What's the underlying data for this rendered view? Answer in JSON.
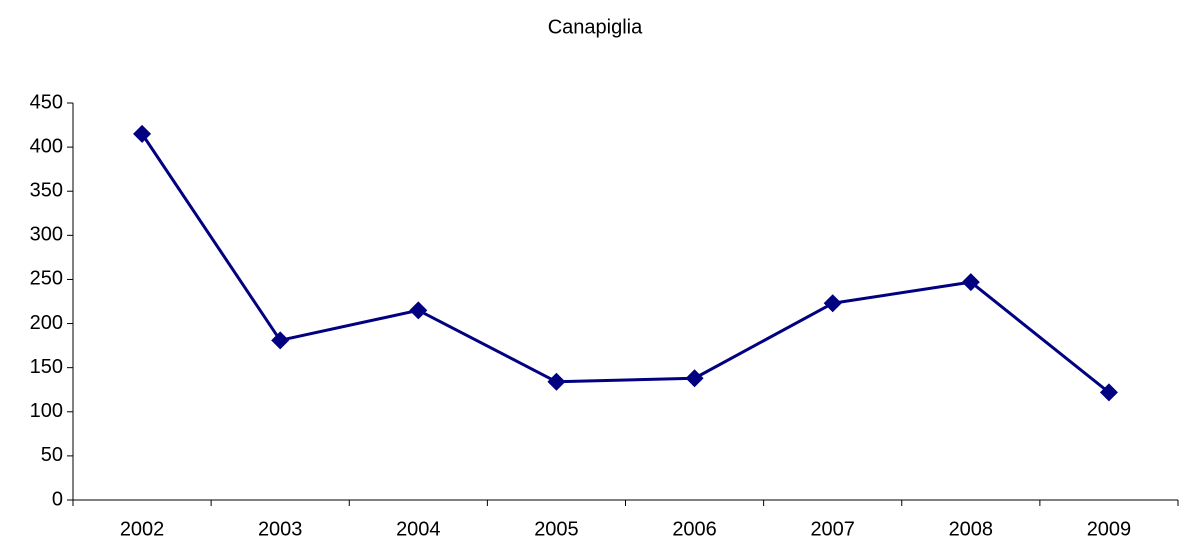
{
  "chart_data": {
    "type": "line",
    "title": "Canapiglia",
    "categories": [
      "2002",
      "2003",
      "2004",
      "2005",
      "2006",
      "2007",
      "2008",
      "2009"
    ],
    "series": [
      {
        "color": "#000080",
        "values": [
          415,
          181,
          215,
          134,
          138,
          223,
          247,
          122
        ]
      }
    ],
    "ylim": [
      0,
      450
    ],
    "yticks": [
      0,
      50,
      100,
      150,
      200,
      250,
      300,
      350,
      400,
      450
    ],
    "grid": false
  }
}
